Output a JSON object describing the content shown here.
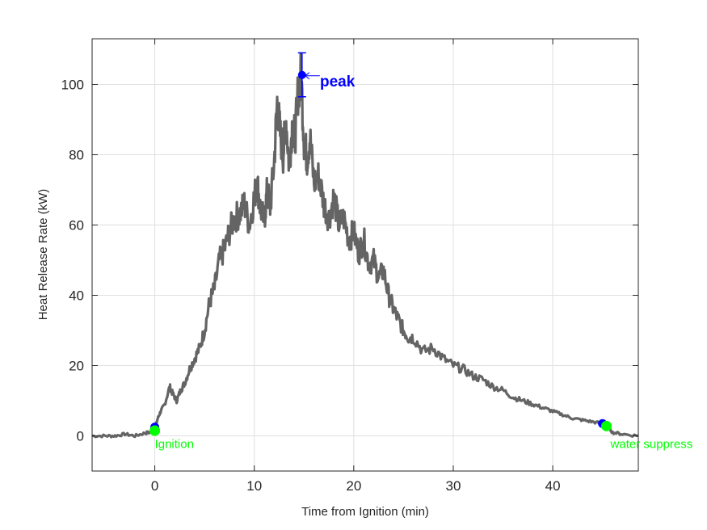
{
  "chart_data": {
    "type": "line",
    "title": "",
    "xlabel": "Time from Ignition (min)",
    "ylabel": "Heat Release Rate (kW)",
    "xlim": [
      -6.3,
      48.6
    ],
    "ylim": [
      -10,
      113
    ],
    "xticks": [
      0,
      10,
      20,
      30,
      40
    ],
    "yticks": [
      0,
      20,
      40,
      60,
      80,
      100
    ],
    "grid": true,
    "legend": null,
    "series": [
      {
        "name": "Heat Release Rate",
        "color": "#646464",
        "marker": "dot",
        "x": [
          -6.3,
          -5,
          -4,
          -3,
          -2,
          -1,
          -0.5,
          0,
          0.3,
          0.6,
          1,
          1.5,
          1.8,
          2.2,
          2.6,
          3,
          3.5,
          4,
          4.5,
          5,
          5.5,
          6,
          6.5,
          7,
          7.5,
          8,
          8.5,
          9,
          9.5,
          10,
          10.3,
          10.6,
          11,
          11.3,
          11.6,
          12,
          12.3,
          12.6,
          12.9,
          13.2,
          13.5,
          13.8,
          14.1,
          14.4,
          14.7,
          15,
          15.3,
          15.6,
          16,
          16.5,
          17,
          17.5,
          18,
          18.5,
          19,
          19.5,
          20,
          20.5,
          21,
          21.5,
          22,
          22.5,
          23,
          23.5,
          24,
          24.5,
          25,
          25.5,
          26,
          27,
          28,
          29,
          30,
          31,
          32,
          33,
          34,
          35,
          36,
          37,
          38,
          39,
          40,
          41,
          42,
          43,
          44,
          45,
          45.5,
          46,
          47,
          48.6
        ],
        "y": [
          0,
          0,
          0,
          0.5,
          0,
          0.8,
          1,
          2,
          5,
          7,
          9,
          14,
          12,
          10,
          13,
          15,
          19,
          22,
          25,
          30,
          38,
          42,
          50,
          53,
          58,
          62,
          63,
          66,
          60,
          68,
          72,
          65,
          61,
          70,
          65,
          78,
          95,
          86,
          80,
          90,
          77,
          88,
          85,
          98,
          103,
          84,
          79,
          85,
          72,
          74,
          66,
          62,
          68,
          60,
          62,
          56,
          58,
          52,
          56,
          49,
          50,
          45,
          47,
          40,
          36,
          33,
          30,
          28,
          28,
          24,
          25,
          22,
          20,
          19,
          17,
          16,
          14,
          13,
          11,
          10,
          9,
          8,
          7,
          6,
          5,
          4.5,
          4,
          3.5,
          3,
          1,
          0.5,
          0
        ]
      }
    ],
    "markers": [
      {
        "label": "Ignition",
        "x": 0,
        "y": 2.5,
        "color": "#0000ff",
        "type": "blue-dot"
      },
      {
        "label": "Ignition",
        "x": 0,
        "y": 1.5,
        "color": "#00ff00",
        "type": "green-dot"
      },
      {
        "label": "water suppression",
        "x": 45,
        "y": 3.5,
        "color": "#0000ff",
        "type": "blue-dot"
      },
      {
        "label": "water suppression",
        "x": 45.4,
        "y": 2.8,
        "color": "#00ff00",
        "type": "green-dot"
      },
      {
        "label": "peak",
        "x": 14.8,
        "y": 102.7,
        "color": "#0000ff",
        "type": "errorbar",
        "err_low": 96.5,
        "err_high": 109
      }
    ],
    "annotations": [
      {
        "text": "peak",
        "x": 16.6,
        "y": 101,
        "color": "#0000ff"
      },
      {
        "text": "Ignition",
        "x": 0,
        "y": -3.5,
        "color": "#00ff00"
      },
      {
        "text": "water suppress",
        "x": 45.8,
        "y": -3.5,
        "color": "#00ff00"
      }
    ]
  }
}
